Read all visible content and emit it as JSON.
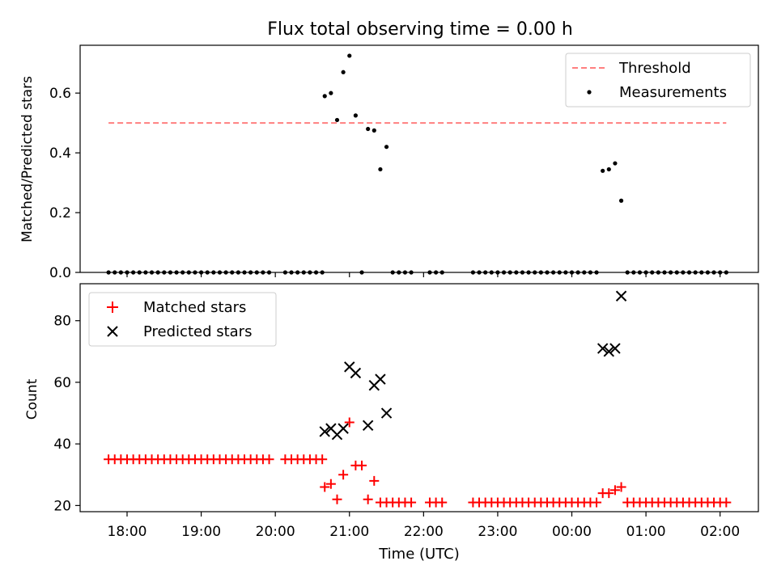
{
  "title": "Flux total observing time = 0.00 h",
  "chart_data": [
    {
      "type": "scatter",
      "ylabel": "Matched/Predicted stars",
      "ylim": [
        0,
        0.76
      ],
      "yticks": [
        "0.0",
        "0.2",
        "0.4",
        "0.6"
      ],
      "ytick_values": [
        0,
        0.2,
        0.4,
        0.6
      ],
      "legend": {
        "position": "top-right",
        "threshold_label": "Threshold",
        "measurements_label": "Measurements"
      },
      "threshold": {
        "value": 0.5,
        "color": "#ff7f7f"
      },
      "series": [
        {
          "name": "Measurements",
          "color": "#000000",
          "points": [
            [
              "17:45",
              0
            ],
            [
              "17:50",
              0
            ],
            [
              "17:55",
              0
            ],
            [
              "18:00",
              0
            ],
            [
              "18:05",
              0
            ],
            [
              "18:10",
              0
            ],
            [
              "18:15",
              0
            ],
            [
              "18:20",
              0
            ],
            [
              "18:25",
              0
            ],
            [
              "18:30",
              0
            ],
            [
              "18:35",
              0
            ],
            [
              "18:40",
              0
            ],
            [
              "18:45",
              0
            ],
            [
              "18:50",
              0
            ],
            [
              "18:55",
              0
            ],
            [
              "19:00",
              0
            ],
            [
              "19:05",
              0
            ],
            [
              "19:10",
              0
            ],
            [
              "19:15",
              0
            ],
            [
              "19:20",
              0
            ],
            [
              "19:25",
              0
            ],
            [
              "19:30",
              0
            ],
            [
              "19:35",
              0
            ],
            [
              "19:40",
              0
            ],
            [
              "19:45",
              0
            ],
            [
              "19:50",
              0
            ],
            [
              "19:55",
              0
            ],
            [
              "20:08",
              0
            ],
            [
              "20:13",
              0
            ],
            [
              "20:18",
              0
            ],
            [
              "20:23",
              0
            ],
            [
              "20:28",
              0
            ],
            [
              "20:33",
              0
            ],
            [
              "20:38",
              0
            ],
            [
              "20:40",
              0.59
            ],
            [
              "20:45",
              0.6
            ],
            [
              "20:50",
              0.51
            ],
            [
              "20:55",
              0.67
            ],
            [
              "21:00",
              0.725
            ],
            [
              "21:05",
              0.525
            ],
            [
              "21:10",
              0
            ],
            [
              "21:15",
              0.48
            ],
            [
              "21:20",
              0.475
            ],
            [
              "21:25",
              0.345
            ],
            [
              "21:30",
              0.42
            ],
            [
              "21:35",
              0
            ],
            [
              "21:40",
              0
            ],
            [
              "21:45",
              0
            ],
            [
              "21:50",
              0
            ],
            [
              "22:05",
              0
            ],
            [
              "22:10",
              0
            ],
            [
              "22:15",
              0
            ],
            [
              "22:40",
              0
            ],
            [
              "22:45",
              0
            ],
            [
              "22:50",
              0
            ],
            [
              "22:55",
              0
            ],
            [
              "23:00",
              0
            ],
            [
              "23:05",
              0
            ],
            [
              "23:10",
              0
            ],
            [
              "23:15",
              0
            ],
            [
              "23:20",
              0
            ],
            [
              "23:25",
              0
            ],
            [
              "23:30",
              0
            ],
            [
              "23:35",
              0
            ],
            [
              "23:40",
              0
            ],
            [
              "23:45",
              0
            ],
            [
              "23:50",
              0
            ],
            [
              "23:55",
              0
            ],
            [
              "00:00",
              0
            ],
            [
              "00:05",
              0
            ],
            [
              "00:10",
              0
            ],
            [
              "00:15",
              0
            ],
            [
              "00:20",
              0
            ],
            [
              "00:25",
              0.34
            ],
            [
              "00:30",
              0.345
            ],
            [
              "00:35",
              0.365
            ],
            [
              "00:40",
              0.24
            ],
            [
              "00:45",
              0
            ],
            [
              "00:50",
              0
            ],
            [
              "00:55",
              0
            ],
            [
              "01:00",
              0
            ],
            [
              "01:05",
              0
            ],
            [
              "01:10",
              0
            ],
            [
              "01:15",
              0
            ],
            [
              "01:20",
              0
            ],
            [
              "01:25",
              0
            ],
            [
              "01:30",
              0
            ],
            [
              "01:35",
              0
            ],
            [
              "01:40",
              0
            ],
            [
              "01:45",
              0
            ],
            [
              "01:50",
              0
            ],
            [
              "01:55",
              0
            ],
            [
              "02:00",
              0
            ],
            [
              "02:05",
              0
            ]
          ]
        }
      ]
    },
    {
      "type": "scatter",
      "ylabel": "Count",
      "xlabel": "Time (UTC)",
      "ylim": [
        18,
        92
      ],
      "yticks": [
        "20",
        "40",
        "60",
        "80"
      ],
      "ytick_values": [
        20,
        40,
        60,
        80
      ],
      "xlim": [
        "17:22",
        "02:31"
      ],
      "xticks": [
        "18:00",
        "19:00",
        "20:00",
        "21:00",
        "22:00",
        "23:00",
        "00:00",
        "01:00",
        "02:00"
      ],
      "legend": {
        "position": "top-left",
        "matched_label": "Matched stars",
        "predicted_label": "Predicted stars"
      },
      "series": [
        {
          "name": "Matched stars",
          "marker": "plus",
          "color": "#ff0000",
          "points": [
            [
              "17:45",
              35
            ],
            [
              "17:50",
              35
            ],
            [
              "17:55",
              35
            ],
            [
              "18:00",
              35
            ],
            [
              "18:05",
              35
            ],
            [
              "18:10",
              35
            ],
            [
              "18:15",
              35
            ],
            [
              "18:20",
              35
            ],
            [
              "18:25",
              35
            ],
            [
              "18:30",
              35
            ],
            [
              "18:35",
              35
            ],
            [
              "18:40",
              35
            ],
            [
              "18:45",
              35
            ],
            [
              "18:50",
              35
            ],
            [
              "18:55",
              35
            ],
            [
              "19:00",
              35
            ],
            [
              "19:05",
              35
            ],
            [
              "19:10",
              35
            ],
            [
              "19:15",
              35
            ],
            [
              "19:20",
              35
            ],
            [
              "19:25",
              35
            ],
            [
              "19:30",
              35
            ],
            [
              "19:35",
              35
            ],
            [
              "19:40",
              35
            ],
            [
              "19:45",
              35
            ],
            [
              "19:50",
              35
            ],
            [
              "19:55",
              35
            ],
            [
              "20:08",
              35
            ],
            [
              "20:13",
              35
            ],
            [
              "20:18",
              35
            ],
            [
              "20:23",
              35
            ],
            [
              "20:28",
              35
            ],
            [
              "20:33",
              35
            ],
            [
              "20:38",
              35
            ],
            [
              "20:40",
              26
            ],
            [
              "20:45",
              27
            ],
            [
              "20:50",
              22
            ],
            [
              "20:55",
              30
            ],
            [
              "21:00",
              47
            ],
            [
              "21:05",
              33
            ],
            [
              "21:10",
              33
            ],
            [
              "21:15",
              22
            ],
            [
              "21:20",
              28
            ],
            [
              "21:25",
              21
            ],
            [
              "21:30",
              21
            ],
            [
              "21:35",
              21
            ],
            [
              "21:40",
              21
            ],
            [
              "21:45",
              21
            ],
            [
              "21:50",
              21
            ],
            [
              "22:05",
              21
            ],
            [
              "22:10",
              21
            ],
            [
              "22:15",
              21
            ],
            [
              "22:40",
              21
            ],
            [
              "22:45",
              21
            ],
            [
              "22:50",
              21
            ],
            [
              "22:55",
              21
            ],
            [
              "23:00",
              21
            ],
            [
              "23:05",
              21
            ],
            [
              "23:10",
              21
            ],
            [
              "23:15",
              21
            ],
            [
              "23:20",
              21
            ],
            [
              "23:25",
              21
            ],
            [
              "23:30",
              21
            ],
            [
              "23:35",
              21
            ],
            [
              "23:40",
              21
            ],
            [
              "23:45",
              21
            ],
            [
              "23:50",
              21
            ],
            [
              "23:55",
              21
            ],
            [
              "00:00",
              21
            ],
            [
              "00:05",
              21
            ],
            [
              "00:10",
              21
            ],
            [
              "00:15",
              21
            ],
            [
              "00:20",
              21
            ],
            [
              "00:25",
              24
            ],
            [
              "00:30",
              24
            ],
            [
              "00:35",
              25
            ],
            [
              "00:40",
              26
            ],
            [
              "00:45",
              21
            ],
            [
              "00:50",
              21
            ],
            [
              "00:55",
              21
            ],
            [
              "01:00",
              21
            ],
            [
              "01:05",
              21
            ],
            [
              "01:10",
              21
            ],
            [
              "01:15",
              21
            ],
            [
              "01:20",
              21
            ],
            [
              "01:25",
              21
            ],
            [
              "01:30",
              21
            ],
            [
              "01:35",
              21
            ],
            [
              "01:40",
              21
            ],
            [
              "01:45",
              21
            ],
            [
              "01:50",
              21
            ],
            [
              "01:55",
              21
            ],
            [
              "02:00",
              21
            ],
            [
              "02:05",
              21
            ]
          ]
        },
        {
          "name": "Predicted stars",
          "marker": "x",
          "color": "#000000",
          "points": [
            [
              "20:40",
              44
            ],
            [
              "20:45",
              45
            ],
            [
              "20:50",
              43
            ],
            [
              "20:55",
              45
            ],
            [
              "21:00",
              65
            ],
            [
              "21:05",
              63
            ],
            [
              "21:15",
              46
            ],
            [
              "21:20",
              59
            ],
            [
              "21:25",
              61
            ],
            [
              "21:30",
              50
            ],
            [
              "00:25",
              71
            ],
            [
              "00:30",
              70
            ],
            [
              "00:35",
              71
            ],
            [
              "00:40",
              88
            ]
          ]
        }
      ]
    }
  ]
}
